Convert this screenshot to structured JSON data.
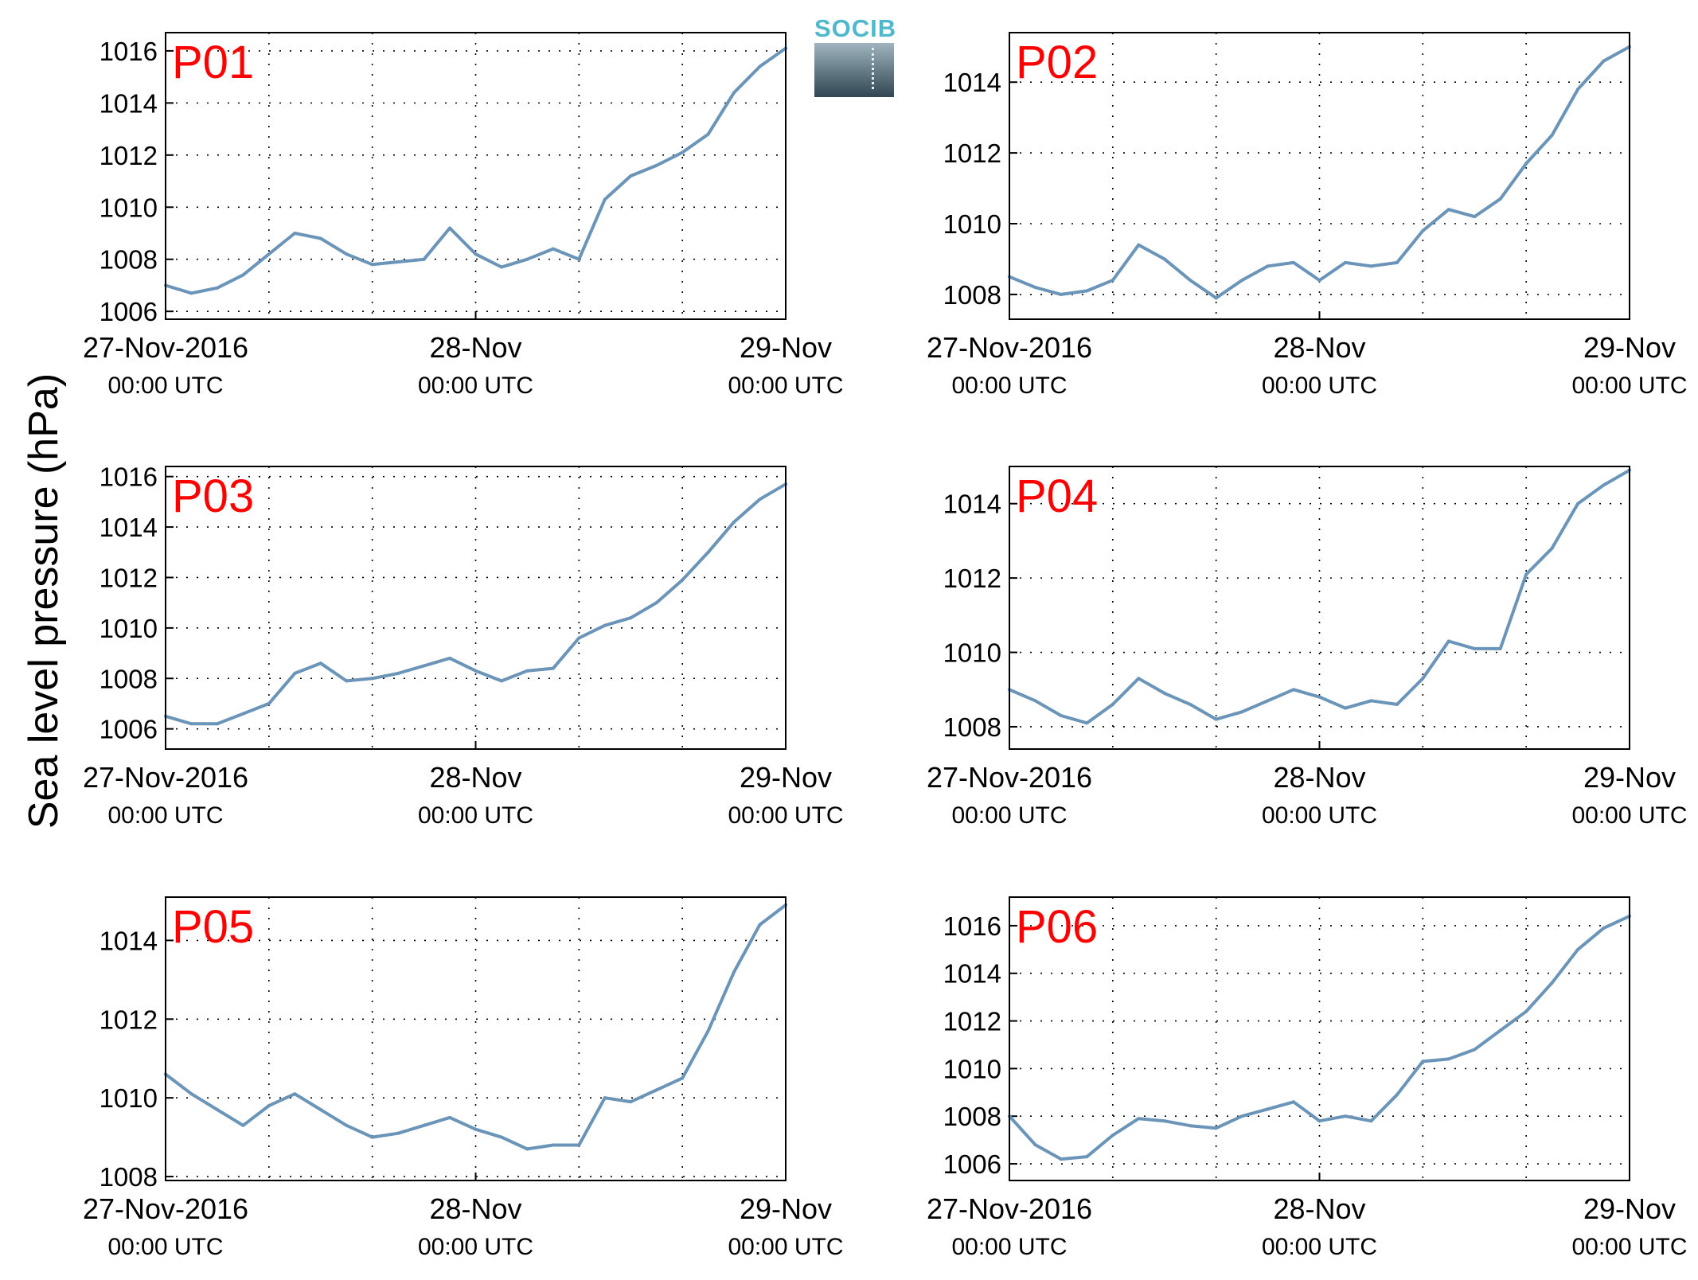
{
  "figure": {
    "ylabel": "Sea level pressure (hPa)",
    "logo_text": "SOCIB",
    "line_color": "#6a94b8",
    "label_color": "#ff0000"
  },
  "chart_data": [
    {
      "type": "line",
      "title": "P01",
      "x": [
        "27-Nov-2016 00:00 UTC",
        "27-Nov-2016 02:00 UTC",
        "27-Nov-2016 04:00 UTC",
        "27-Nov-2016 06:00 UTC",
        "27-Nov-2016 08:00 UTC",
        "27-Nov-2016 10:00 UTC",
        "27-Nov-2016 12:00 UTC",
        "27-Nov-2016 14:00 UTC",
        "27-Nov-2016 16:00 UTC",
        "27-Nov-2016 18:00 UTC",
        "27-Nov-2016 20:00 UTC",
        "27-Nov-2016 22:00 UTC",
        "28-Nov 00:00 UTC",
        "28-Nov 02:00 UTC",
        "28-Nov 04:00 UTC",
        "28-Nov 06:00 UTC",
        "28-Nov 08:00 UTC",
        "28-Nov 10:00 UTC",
        "28-Nov 12:00 UTC",
        "28-Nov 14:00 UTC",
        "28-Nov 16:00 UTC",
        "28-Nov 18:00 UTC",
        "28-Nov 20:00 UTC",
        "28-Nov 22:00 UTC",
        "29-Nov 00:00 UTC"
      ],
      "values": [
        1007.0,
        1006.7,
        1006.9,
        1007.4,
        1008.2,
        1009.0,
        1008.8,
        1008.2,
        1007.8,
        1007.9,
        1008.0,
        1009.2,
        1008.2,
        1007.7,
        1008.0,
        1008.4,
        1008.0,
        1010.3,
        1011.2,
        1011.6,
        1012.1,
        1012.8,
        1014.4,
        1015.4,
        1016.1
      ],
      "ylim": [
        1005.7,
        1016.7
      ],
      "yticks": [
        1006,
        1008,
        1010,
        1012,
        1014,
        1016
      ]
    },
    {
      "type": "line",
      "title": "P02",
      "x": [
        "27-Nov-2016 00:00 UTC",
        "27-Nov-2016 02:00 UTC",
        "27-Nov-2016 04:00 UTC",
        "27-Nov-2016 06:00 UTC",
        "27-Nov-2016 08:00 UTC",
        "27-Nov-2016 10:00 UTC",
        "27-Nov-2016 12:00 UTC",
        "27-Nov-2016 14:00 UTC",
        "27-Nov-2016 16:00 UTC",
        "27-Nov-2016 18:00 UTC",
        "27-Nov-2016 20:00 UTC",
        "27-Nov-2016 22:00 UTC",
        "28-Nov 00:00 UTC",
        "28-Nov 02:00 UTC",
        "28-Nov 04:00 UTC",
        "28-Nov 06:00 UTC",
        "28-Nov 08:00 UTC",
        "28-Nov 10:00 UTC",
        "28-Nov 12:00 UTC",
        "28-Nov 14:00 UTC",
        "28-Nov 16:00 UTC",
        "28-Nov 18:00 UTC",
        "28-Nov 20:00 UTC",
        "28-Nov 22:00 UTC",
        "29-Nov 00:00 UTC"
      ],
      "values": [
        1008.5,
        1008.2,
        1008.0,
        1008.1,
        1008.4,
        1009.4,
        1009.0,
        1008.4,
        1007.9,
        1008.4,
        1008.8,
        1008.9,
        1008.4,
        1008.9,
        1008.8,
        1008.9,
        1009.8,
        1010.4,
        1010.2,
        1010.7,
        1011.7,
        1012.5,
        1013.8,
        1014.6,
        1015.0
      ],
      "ylim": [
        1007.3,
        1015.4
      ],
      "yticks": [
        1008,
        1010,
        1012,
        1014
      ]
    },
    {
      "type": "line",
      "title": "P03",
      "x": [
        "27-Nov-2016 00:00 UTC",
        "27-Nov-2016 02:00 UTC",
        "27-Nov-2016 04:00 UTC",
        "27-Nov-2016 06:00 UTC",
        "27-Nov-2016 08:00 UTC",
        "27-Nov-2016 10:00 UTC",
        "27-Nov-2016 12:00 UTC",
        "27-Nov-2016 14:00 UTC",
        "27-Nov-2016 16:00 UTC",
        "27-Nov-2016 18:00 UTC",
        "27-Nov-2016 20:00 UTC",
        "27-Nov-2016 22:00 UTC",
        "28-Nov 00:00 UTC",
        "28-Nov 02:00 UTC",
        "28-Nov 04:00 UTC",
        "28-Nov 06:00 UTC",
        "28-Nov 08:00 UTC",
        "28-Nov 10:00 UTC",
        "28-Nov 12:00 UTC",
        "28-Nov 14:00 UTC",
        "28-Nov 16:00 UTC",
        "28-Nov 18:00 UTC",
        "28-Nov 20:00 UTC",
        "28-Nov 22:00 UTC",
        "29-Nov 00:00 UTC"
      ],
      "values": [
        1006.5,
        1006.2,
        1006.2,
        1006.6,
        1007.0,
        1008.2,
        1008.6,
        1007.9,
        1008.0,
        1008.2,
        1008.5,
        1008.8,
        1008.3,
        1007.9,
        1008.3,
        1008.4,
        1009.6,
        1010.1,
        1010.4,
        1011.0,
        1011.9,
        1013.0,
        1014.2,
        1015.1,
        1015.7
      ],
      "ylim": [
        1005.2,
        1016.4
      ],
      "yticks": [
        1006,
        1008,
        1010,
        1012,
        1014,
        1016
      ]
    },
    {
      "type": "line",
      "title": "P04",
      "x": [
        "27-Nov-2016 00:00 UTC",
        "27-Nov-2016 02:00 UTC",
        "27-Nov-2016 04:00 UTC",
        "27-Nov-2016 06:00 UTC",
        "27-Nov-2016 08:00 UTC",
        "27-Nov-2016 10:00 UTC",
        "27-Nov-2016 12:00 UTC",
        "27-Nov-2016 14:00 UTC",
        "27-Nov-2016 16:00 UTC",
        "27-Nov-2016 18:00 UTC",
        "27-Nov-2016 20:00 UTC",
        "27-Nov-2016 22:00 UTC",
        "28-Nov 00:00 UTC",
        "28-Nov 02:00 UTC",
        "28-Nov 04:00 UTC",
        "28-Nov 06:00 UTC",
        "28-Nov 08:00 UTC",
        "28-Nov 10:00 UTC",
        "28-Nov 12:00 UTC",
        "28-Nov 14:00 UTC",
        "28-Nov 16:00 UTC",
        "28-Nov 18:00 UTC",
        "28-Nov 20:00 UTC",
        "28-Nov 22:00 UTC",
        "29-Nov 00:00 UTC"
      ],
      "values": [
        1009.0,
        1008.7,
        1008.3,
        1008.1,
        1008.6,
        1009.3,
        1008.9,
        1008.6,
        1008.2,
        1008.4,
        1008.7,
        1009.0,
        1008.8,
        1008.5,
        1008.7,
        1008.6,
        1009.3,
        1010.3,
        1010.1,
        1010.1,
        1012.1,
        1012.8,
        1014.0,
        1014.5,
        1014.9
      ],
      "ylim": [
        1007.4,
        1015.0
      ],
      "yticks": [
        1008,
        1010,
        1012,
        1014
      ]
    },
    {
      "type": "line",
      "title": "P05",
      "x": [
        "27-Nov-2016 00:00 UTC",
        "27-Nov-2016 02:00 UTC",
        "27-Nov-2016 04:00 UTC",
        "27-Nov-2016 06:00 UTC",
        "27-Nov-2016 08:00 UTC",
        "27-Nov-2016 10:00 UTC",
        "27-Nov-2016 12:00 UTC",
        "27-Nov-2016 14:00 UTC",
        "27-Nov-2016 16:00 UTC",
        "27-Nov-2016 18:00 UTC",
        "27-Nov-2016 20:00 UTC",
        "27-Nov-2016 22:00 UTC",
        "28-Nov 00:00 UTC",
        "28-Nov 02:00 UTC",
        "28-Nov 04:00 UTC",
        "28-Nov 06:00 UTC",
        "28-Nov 08:00 UTC",
        "28-Nov 10:00 UTC",
        "28-Nov 12:00 UTC",
        "28-Nov 14:00 UTC",
        "28-Nov 16:00 UTC",
        "28-Nov 18:00 UTC",
        "28-Nov 20:00 UTC",
        "28-Nov 22:00 UTC",
        "29-Nov 00:00 UTC"
      ],
      "values": [
        1010.6,
        1010.1,
        1009.7,
        1009.3,
        1009.8,
        1010.1,
        1009.7,
        1009.3,
        1009.0,
        1009.1,
        1009.3,
        1009.5,
        1009.2,
        1009.0,
        1008.7,
        1008.8,
        1008.8,
        1010.0,
        1009.9,
        1010.2,
        1010.5,
        1011.7,
        1013.2,
        1014.4,
        1014.9
      ],
      "ylim": [
        1007.9,
        1015.1
      ],
      "yticks": [
        1008,
        1010,
        1012,
        1014
      ]
    },
    {
      "type": "line",
      "title": "P06",
      "x": [
        "27-Nov-2016 00:00 UTC",
        "27-Nov-2016 02:00 UTC",
        "27-Nov-2016 04:00 UTC",
        "27-Nov-2016 06:00 UTC",
        "27-Nov-2016 08:00 UTC",
        "27-Nov-2016 10:00 UTC",
        "27-Nov-2016 12:00 UTC",
        "27-Nov-2016 14:00 UTC",
        "27-Nov-2016 16:00 UTC",
        "27-Nov-2016 18:00 UTC",
        "27-Nov-2016 20:00 UTC",
        "27-Nov-2016 22:00 UTC",
        "28-Nov 00:00 UTC",
        "28-Nov 02:00 UTC",
        "28-Nov 04:00 UTC",
        "28-Nov 06:00 UTC",
        "28-Nov 08:00 UTC",
        "28-Nov 10:00 UTC",
        "28-Nov 12:00 UTC",
        "28-Nov 14:00 UTC",
        "28-Nov 16:00 UTC",
        "28-Nov 18:00 UTC",
        "28-Nov 20:00 UTC",
        "28-Nov 22:00 UTC",
        "29-Nov 00:00 UTC"
      ],
      "values": [
        1008.0,
        1006.8,
        1006.2,
        1006.3,
        1007.2,
        1007.9,
        1007.8,
        1007.6,
        1007.5,
        1008.0,
        1008.3,
        1008.6,
        1007.8,
        1008.0,
        1007.8,
        1008.9,
        1010.3,
        1010.4,
        1010.8,
        1011.6,
        1012.4,
        1013.6,
        1015.0,
        1015.9,
        1016.4
      ],
      "ylim": [
        1005.3,
        1017.2
      ],
      "yticks": [
        1006,
        1008,
        1010,
        1012,
        1014,
        1016
      ]
    }
  ],
  "xaxis": {
    "ticks": [
      {
        "date": "27-Nov-2016",
        "time": "00:00 UTC"
      },
      {
        "date": "28-Nov",
        "time": "00:00 UTC"
      },
      {
        "date": "29-Nov",
        "time": "00:00 UTC"
      }
    ]
  }
}
